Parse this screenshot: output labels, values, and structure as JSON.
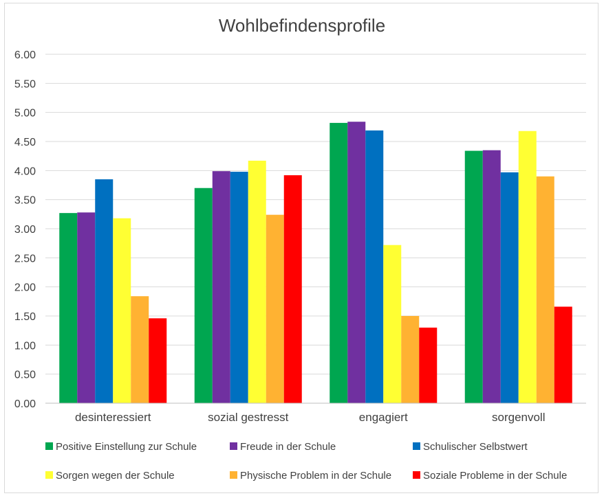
{
  "chart_data": {
    "type": "bar",
    "title": "Wohlbefindensprofile",
    "xlabel": "",
    "ylabel": "",
    "ylim": [
      0,
      6
    ],
    "ytick_step": 0.5,
    "yticks": [
      "0.00",
      "0.50",
      "1.00",
      "1.50",
      "2.00",
      "2.50",
      "3.00",
      "3.50",
      "4.00",
      "4.50",
      "5.00",
      "5.50",
      "6.00"
    ],
    "grid": true,
    "legend_position": "bottom",
    "categories": [
      "desinteressiert",
      "sozial gestresst",
      "engagiert",
      "sorgenvoll"
    ],
    "series": [
      {
        "name": "Positive Einstellung zur Schule",
        "color": "#00a650",
        "values": [
          3.27,
          3.7,
          4.82,
          4.34
        ]
      },
      {
        "name": "Freude in der Schule",
        "color": "#7030a0",
        "values": [
          3.28,
          3.99,
          4.84,
          4.35
        ]
      },
      {
        "name": "Schulischer Selbstwert",
        "color": "#0070c0",
        "values": [
          3.85,
          3.98,
          4.69,
          3.97
        ]
      },
      {
        "name": "Sorgen wegen der Schule",
        "color": "#ffff33",
        "values": [
          3.18,
          4.17,
          2.72,
          4.68
        ]
      },
      {
        "name": "Physische Problem in der Schule",
        "color": "#ffb232",
        "values": [
          1.84,
          3.24,
          1.5,
          3.9
        ]
      },
      {
        "name": "Soziale Probleme in der Schule",
        "color": "#ff0000",
        "values": [
          1.46,
          3.92,
          1.3,
          1.66
        ]
      }
    ]
  }
}
